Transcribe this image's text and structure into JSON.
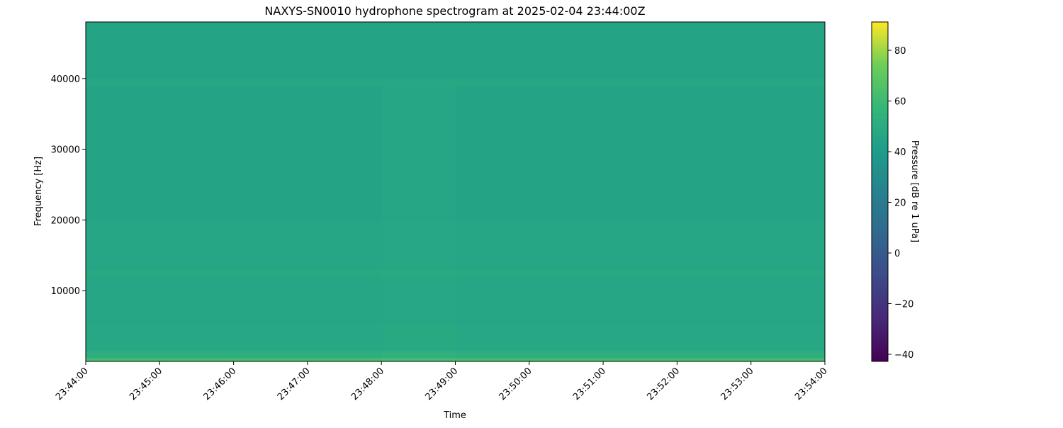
{
  "chart_data": {
    "type": "heatmap",
    "title": "NAXYS-SN0010 hydrophone spectrogram at 2025-02-04 23:44:00Z",
    "xlabel": "Time",
    "ylabel": "Frequency [Hz]",
    "x_ticks": [
      "23:44:00",
      "23:45:00",
      "23:46:00",
      "23:47:00",
      "23:48:00",
      "23:49:00",
      "23:50:00",
      "23:51:00",
      "23:52:00",
      "23:53:00",
      "23:54:00"
    ],
    "y_ticks": [
      10000,
      20000,
      30000,
      40000
    ],
    "y_tick_labels": [
      "10000",
      "20000",
      "30000",
      "40000"
    ],
    "ylim": [
      0,
      48000
    ],
    "colormap": "viridis",
    "colorbar": {
      "label": "Pressure [dB re 1 uPa]",
      "range": [
        -42.8,
        91.2
      ],
      "ticks": [
        -40,
        -20,
        0,
        20,
        40,
        60,
        80
      ],
      "tick_labels": [
        "−40",
        "−20",
        "0",
        "20",
        "40",
        "60",
        "80"
      ]
    },
    "time_bins": [
      "23:44",
      "23:45",
      "23:46",
      "23:47",
      "23:48",
      "23:49",
      "23:50",
      "23:51",
      "23:52",
      "23:53"
    ],
    "freq_bands_hz": [
      [
        0,
        500
      ],
      [
        500,
        1500
      ],
      [
        1500,
        5000
      ],
      [
        5000,
        12000
      ],
      [
        12000,
        13000
      ],
      [
        13000,
        20000
      ],
      [
        20000,
        39000
      ],
      [
        39000,
        40000
      ],
      [
        40000,
        48000
      ]
    ],
    "values_db": [
      [
        62,
        62,
        62,
        62,
        62,
        62,
        62,
        62,
        62,
        62
      ],
      [
        52,
        52,
        52,
        52,
        53,
        52,
        52,
        52,
        52,
        52
      ],
      [
        47,
        47,
        47,
        47,
        48,
        47,
        47,
        47,
        47,
        47
      ],
      [
        46,
        46,
        46,
        46,
        47,
        46,
        46,
        46,
        46,
        46
      ],
      [
        48,
        48,
        48,
        48,
        49,
        48,
        48,
        48,
        48,
        48
      ],
      [
        46,
        46,
        46,
        46,
        47,
        46,
        46,
        46,
        46,
        46
      ],
      [
        45,
        45,
        45,
        45,
        46,
        45,
        45,
        45,
        45,
        45
      ],
      [
        47,
        47,
        47,
        47,
        47,
        47,
        47,
        47,
        47,
        47
      ],
      [
        45,
        45,
        45,
        45,
        45,
        45,
        45,
        45,
        45,
        45
      ]
    ]
  }
}
